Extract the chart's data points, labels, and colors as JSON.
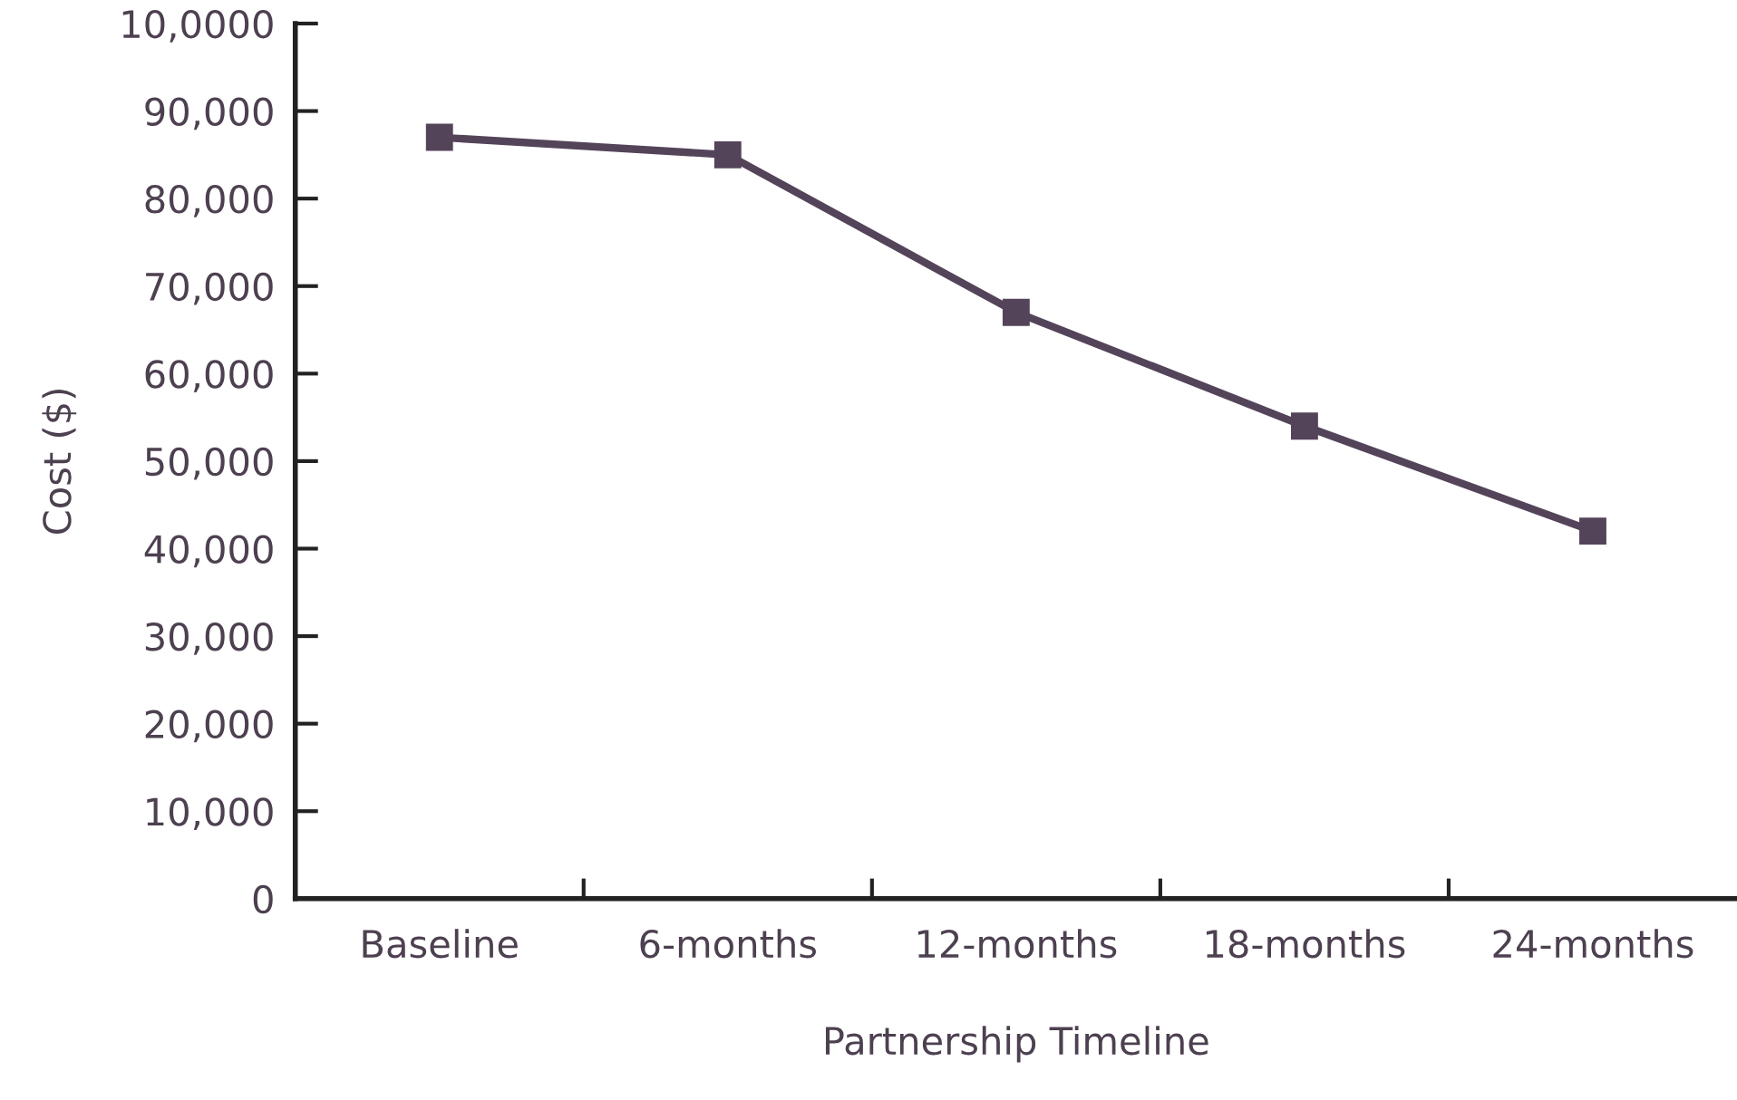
{
  "chart_data": {
    "type": "line",
    "xlabel": "Partnership Timeline",
    "ylabel": "Cost ($)",
    "categories": [
      "Baseline",
      "6-months",
      "12-months",
      "18-months",
      "24-months"
    ],
    "series": [
      {
        "color": "#54445a",
        "values": [
          87000,
          85000,
          67000,
          54000,
          42000
        ]
      }
    ],
    "ylim": [
      0,
      100000
    ],
    "yticks": [
      0,
      {
        "value": 10000,
        "label": "10,000"
      },
      {
        "value": 20000,
        "label": "20,000"
      },
      {
        "value": 30000,
        "label": "30,000"
      },
      {
        "value": 40000,
        "label": "40,000"
      },
      {
        "value": 50000,
        "label": "50,000"
      },
      {
        "value": 60000,
        "label": "60,000"
      },
      {
        "value": 70000,
        "label": "70,000"
      },
      {
        "value": 80000,
        "label": "80,000"
      },
      {
        "value": 90000,
        "label": "90,000"
      },
      {
        "value": 100000,
        "label": "10,0000"
      }
    ],
    "marker": "square",
    "line_style": "solid",
    "grid": false,
    "legend": false
  }
}
